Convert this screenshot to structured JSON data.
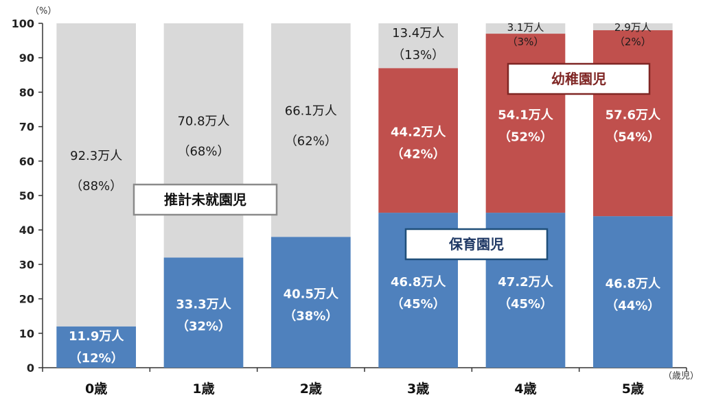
{
  "chart_data": {
    "type": "bar",
    "stacked": true,
    "categories": [
      "0歳",
      "1歳",
      "2歳",
      "3歳",
      "4歳",
      "5歳"
    ],
    "ylim": [
      0,
      100
    ],
    "yticks": [
      0,
      10,
      20,
      30,
      40,
      50,
      60,
      70,
      80,
      90,
      100
    ],
    "yunit": "（%）",
    "xunit": "（歳児）",
    "grid": false,
    "series": [
      {
        "name": "保育園児",
        "color": "#4f81bd",
        "values": [
          12,
          32,
          38,
          45,
          45,
          44
        ],
        "labels": [
          [
            "11.9万人",
            "（12%）"
          ],
          [
            "33.3万人",
            "（32%）"
          ],
          [
            "40.5万人",
            "（38%）"
          ],
          [
            "46.8万人",
            "（45%）"
          ],
          [
            "47.2万人",
            "（45%）"
          ],
          [
            "46.8万人",
            "（44%）"
          ]
        ]
      },
      {
        "name": "幼稚園児",
        "color": "#c0504d",
        "values": [
          0,
          0,
          0,
          42,
          52,
          54
        ],
        "labels": [
          [
            "",
            ""
          ],
          [
            "",
            ""
          ],
          [
            "",
            ""
          ],
          [
            "44.2万人",
            "（42%）"
          ],
          [
            "54.1万人",
            "（52%）"
          ],
          [
            "57.6万人",
            "（54%）"
          ]
        ]
      },
      {
        "name": "推計未就園児",
        "color": "#d9d9d9",
        "values": [
          88,
          68,
          62,
          13,
          3,
          2
        ],
        "labels": [
          [
            "92.3万人",
            "（88%）"
          ],
          [
            "70.8万人",
            "（68%）"
          ],
          [
            "66.1万人",
            "（62%）"
          ],
          [
            "13.4万人",
            "（13%）"
          ],
          [
            "3.1万人",
            "（3%）"
          ],
          [
            "2.9万人",
            "（2%）"
          ]
        ]
      }
    ]
  },
  "legend_boxes": {
    "mishugaku": "推計未就園児",
    "hoiku": "保育園児",
    "youchien": "幼稚園児"
  }
}
